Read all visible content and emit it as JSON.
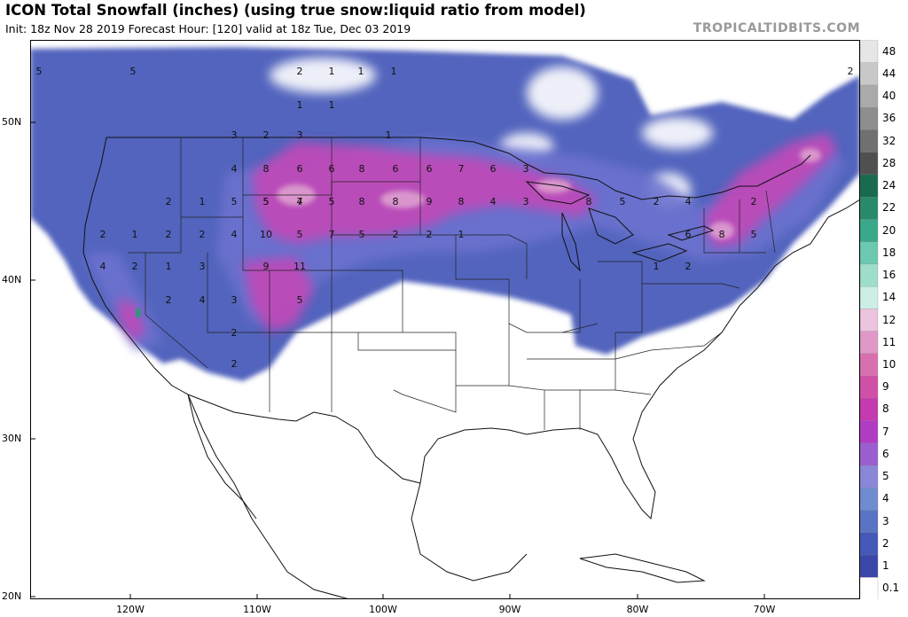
{
  "header": {
    "title": "ICON Total Snowfall (inches) (using true snow:liquid ratio from model)",
    "subtitle": "Init: 18z Nov 28 2019   Forecast Hour: [120]   valid at 18z Tue, Dec 03 2019",
    "credit": "TROPICALTIDBITS.COM"
  },
  "axes": {
    "lat_labels": [
      "50N",
      "40N",
      "30N",
      "20N"
    ],
    "lon_labels": [
      "120W",
      "110W",
      "100W",
      "90W",
      "80W",
      "70W"
    ]
  },
  "colorbar": {
    "levels": [
      "0.1",
      "1",
      "2",
      "3",
      "4",
      "5",
      "6",
      "7",
      "8",
      "9",
      "10",
      "11",
      "12",
      "14",
      "16",
      "18",
      "20",
      "22",
      "24",
      "28",
      "32",
      "36",
      "40",
      "44",
      "48"
    ],
    "colors": [
      "#ffffff",
      "#3a46a8",
      "#4458b8",
      "#5a74c4",
      "#6e8ccf",
      "#8a86d8",
      "#9b5ed0",
      "#b03cc4",
      "#c43ab0",
      "#d050a8",
      "#d870b0",
      "#e098c8",
      "#ecc4de",
      "#cceee4",
      "#9edccc",
      "#6cc8b0",
      "#3aa88a",
      "#288a6a",
      "#1a6a50",
      "#505050",
      "#707070",
      "#8e8e8e",
      "#aaaaaa",
      "#c8c8c8",
      "#e6e6e6"
    ]
  },
  "map_labels": [
    {
      "v": "5"
    },
    {
      "v": "5"
    },
    {
      "v": "2"
    },
    {
      "v": "1"
    },
    {
      "v": "1"
    },
    {
      "v": "1"
    },
    {
      "v": "1"
    },
    {
      "v": "1"
    },
    {
      "v": "2"
    },
    {
      "v": "3"
    },
    {
      "v": "2"
    },
    {
      "v": "3"
    },
    {
      "v": "1"
    },
    {
      "v": "4"
    },
    {
      "v": "8"
    },
    {
      "v": "6"
    },
    {
      "v": "6"
    },
    {
      "v": "8"
    },
    {
      "v": "6"
    },
    {
      "v": "6"
    },
    {
      "v": "7"
    },
    {
      "v": "6"
    },
    {
      "v": "3"
    },
    {
      "v": "5"
    },
    {
      "v": "5"
    },
    {
      "v": "4"
    },
    {
      "v": "2"
    },
    {
      "v": "1"
    },
    {
      "v": "5"
    },
    {
      "v": "7"
    },
    {
      "v": "5"
    },
    {
      "v": "8"
    },
    {
      "v": "8"
    },
    {
      "v": "9"
    },
    {
      "v": "8"
    },
    {
      "v": "4"
    },
    {
      "v": "3"
    },
    {
      "v": "8"
    },
    {
      "v": "5"
    },
    {
      "v": "2"
    },
    {
      "v": "4"
    },
    {
      "v": "2"
    },
    {
      "v": "2"
    },
    {
      "v": "1"
    },
    {
      "v": "2"
    },
    {
      "v": "2"
    },
    {
      "v": "4"
    },
    {
      "v": "10"
    },
    {
      "v": "5"
    },
    {
      "v": "7"
    },
    {
      "v": "5"
    },
    {
      "v": "2"
    },
    {
      "v": "2"
    },
    {
      "v": "1"
    },
    {
      "v": "6"
    },
    {
      "v": "8"
    },
    {
      "v": "5"
    },
    {
      "v": "4"
    },
    {
      "v": "2"
    },
    {
      "v": "1"
    },
    {
      "v": "3"
    },
    {
      "v": "9"
    },
    {
      "v": "11"
    },
    {
      "v": "1"
    },
    {
      "v": "2"
    },
    {
      "v": "2"
    },
    {
      "v": "4"
    },
    {
      "v": "3"
    },
    {
      "v": "5"
    },
    {
      "v": "2"
    },
    {
      "v": "2"
    }
  ]
}
